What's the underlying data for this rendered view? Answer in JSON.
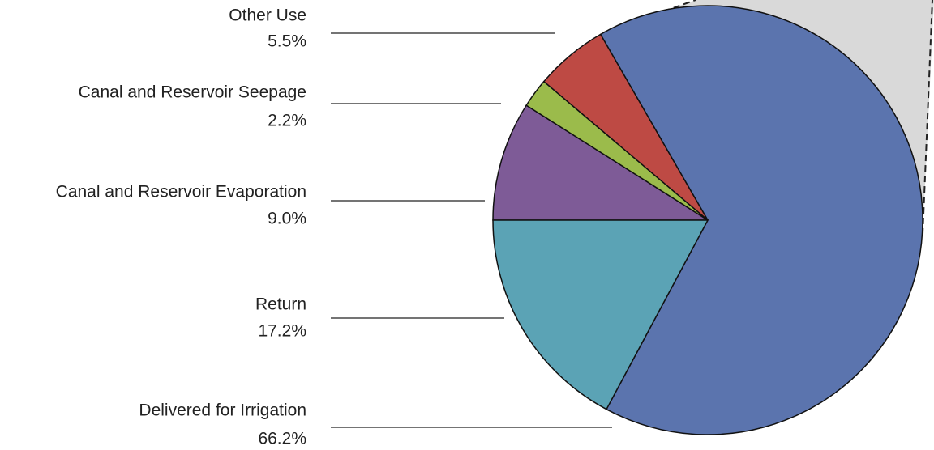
{
  "chart_data": {
    "type": "pie",
    "categories": [
      "Canal and Reservoir Evaporation",
      "Canal and Reservoir Seepage",
      "Other Use",
      "Delivered for Irrigation",
      "Return"
    ],
    "values": [
      9.0,
      2.2,
      5.5,
      66.2,
      17.2
    ],
    "value_labels": [
      "9.0%",
      "2.2%",
      "5.5%",
      "66.2%",
      "17.2%"
    ],
    "colors": [
      "#7e5b97",
      "#9bbb4b",
      "#be4a44",
      "#5b74ae",
      "#5ba3b5"
    ]
  }
}
